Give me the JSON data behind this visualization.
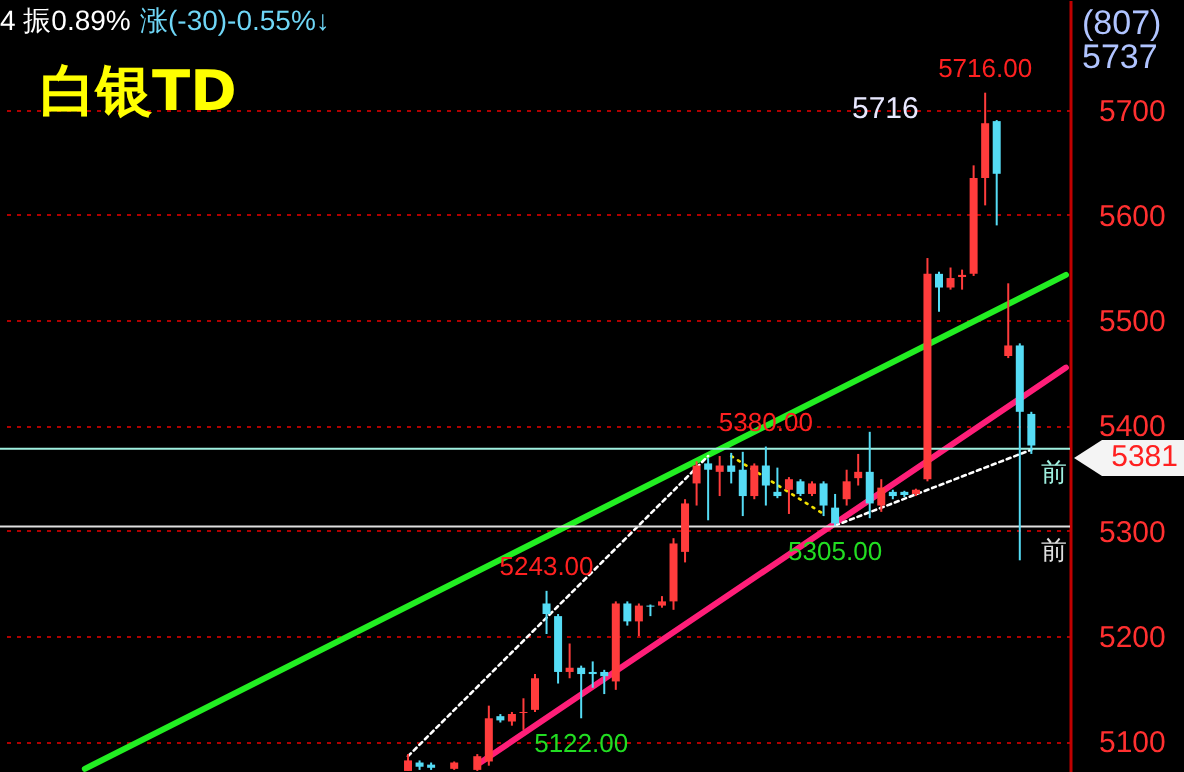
{
  "chart_data": {
    "type": "candlestick",
    "title": "白银TD",
    "annotations": [
      "4 振0.89%",
      "涨(-30)-0.55%↓",
      "(807)",
      "5737",
      "5716",
      {
        "text": "5716.00",
        "y": 5716
      },
      {
        "text": "5380.00",
        "y": 5380
      },
      {
        "text": "5243.00",
        "y": 5243
      },
      {
        "text": "5122.00",
        "y": 5122
      },
      {
        "text": "5305.00",
        "y": 5305
      },
      "5381"
    ],
    "categories": [
      null,
      null,
      null,
      null,
      null,
      null,
      null,
      null,
      null,
      null,
      null,
      null,
      null,
      null,
      null,
      null,
      null,
      null,
      null,
      null,
      null,
      null,
      null,
      null,
      null,
      null,
      null,
      null,
      null,
      null,
      null,
      null,
      null,
      null,
      null,
      null,
      null,
      null,
      null,
      null,
      null,
      null,
      null,
      null,
      null,
      null,
      null,
      null,
      null,
      null,
      null,
      null,
      null,
      null,
      null,
      null,
      null,
      null,
      null,
      null,
      null,
      null,
      null,
      null,
      null,
      null,
      null,
      null,
      null,
      null,
      null,
      null,
      null,
      null,
      null,
      null,
      null,
      null,
      null,
      null,
      null,
      null,
      null,
      null,
      null,
      null,
      null,
      null,
      null,
      null,
      null,
      null,
      null
    ],
    "ohlc": [
      null,
      null,
      null,
      null,
      null,
      null,
      null,
      null,
      null,
      null,
      null,
      null,
      null,
      null,
      null,
      null,
      null,
      null,
      null,
      null,
      null,
      null,
      null,
      null,
      null,
      null,
      null,
      null,
      null,
      null,
      null,
      null,
      null,
      null,
      null,
      [
        5072,
        5088,
        5072,
        5082
      ],
      [
        5080,
        5082,
        5073,
        5076
      ],
      [
        5078,
        5080,
        5073,
        5075
      ],
      null,
      [
        5074,
        5081,
        5073,
        5080
      ],
      null,
      [
        5073,
        5088,
        5072,
        5086
      ],
      [
        5081,
        5134,
        5077,
        5122
      ],
      [
        5124,
        5126,
        5118,
        5120
      ],
      [
        5119,
        5128,
        5115,
        5126
      ],
      [
        5127,
        5141,
        5111,
        5128
      ],
      [
        5130,
        5164,
        5128,
        5160
      ],
      [
        5231,
        5243,
        5202,
        5221
      ],
      [
        5219,
        5221,
        5155,
        5166
      ],
      [
        5166,
        5193,
        5160,
        5170
      ],
      [
        5170,
        5172,
        5122,
        5164
      ],
      [
        5166,
        5176,
        5151,
        5164
      ],
      [
        5166,
        5168,
        5145,
        5162
      ],
      [
        5157,
        5233,
        5149,
        5231
      ],
      [
        5231,
        5233,
        5210,
        5214
      ],
      [
        5214,
        5231,
        5200,
        5229
      ],
      [
        5229,
        5230,
        5219,
        5228
      ],
      [
        5229,
        5238,
        5227,
        5233
      ],
      [
        5233,
        5293,
        5225,
        5288
      ],
      [
        5280,
        5330,
        5270,
        5326
      ],
      [
        5345,
        5366,
        5324,
        5362
      ],
      [
        5364,
        5369,
        5310,
        5358
      ],
      [
        5356,
        5371,
        5333,
        5362
      ],
      [
        5362,
        5374,
        5345,
        5356
      ],
      [
        5358,
        5375,
        5314,
        5333
      ],
      [
        5333,
        5364,
        5330,
        5362
      ],
      [
        5362,
        5380,
        5324,
        5343
      ],
      [
        5337,
        5360,
        5331,
        5333
      ],
      [
        5339,
        5351,
        5316,
        5349
      ],
      [
        5347,
        5349,
        5333,
        5335
      ],
      [
        5335,
        5347,
        5333,
        5345
      ],
      [
        5345,
        5347,
        5314,
        5324
      ],
      [
        5322,
        5335,
        5305,
        5307
      ],
      [
        5330,
        5358,
        5324,
        5347
      ],
      [
        5350,
        5373,
        5343,
        5356
      ],
      [
        5356,
        5394,
        5312,
        5326
      ],
      [
        5324,
        5349,
        5318,
        5341
      ],
      [
        5337,
        5339,
        5330,
        5333
      ],
      [
        5337,
        5338,
        5332,
        5334
      ],
      [
        5335,
        5340,
        5333,
        5339
      ],
      [
        5349,
        5559,
        5347,
        5544
      ],
      [
        5544,
        5546,
        5508,
        5531
      ],
      [
        5531,
        5550,
        5529,
        5540
      ],
      [
        5541,
        5548,
        5529,
        5543
      ],
      [
        5544,
        5647,
        5542,
        5635
      ],
      [
        5635,
        5716,
        5609,
        5687
      ],
      [
        5689,
        5690,
        5590,
        5639
      ],
      [
        5466,
        5535,
        5464,
        5476
      ],
      [
        5476,
        5478,
        5272,
        5413
      ],
      [
        5411,
        5413,
        5373,
        5381
      ],
      null,
      null,
      null
    ],
    "series": [
      {
        "type": "line",
        "color": "#22ee22",
        "line_style": "solid",
        "values": [
          null,
          null,
          null,
          null,
          null,
          null,
          null,
          5074,
          null,
          null,
          null,
          null,
          null,
          null,
          null,
          null,
          null,
          null,
          null,
          null,
          null,
          null,
          null,
          null,
          null,
          null,
          null,
          null,
          null,
          null,
          null,
          null,
          null,
          null,
          null,
          null,
          null,
          null,
          null,
          null,
          null,
          null,
          null,
          null,
          null,
          null,
          null,
          null,
          null,
          null,
          null,
          null,
          null,
          null,
          null,
          null,
          null,
          null,
          null,
          null,
          null,
          null,
          null,
          null,
          null,
          null,
          null,
          null,
          null,
          null,
          null,
          null,
          null,
          null,
          null,
          null,
          null,
          null,
          null,
          null,
          null,
          null,
          null,
          null,
          null,
          null,
          null,
          null,
          null,
          null,
          null,
          null,
          5543
        ]
      },
      {
        "type": "line",
        "color": "#ff1e78",
        "line_style": "solid",
        "values": [
          null,
          null,
          null,
          null,
          null,
          null,
          null,
          null,
          null,
          null,
          null,
          null,
          null,
          null,
          null,
          null,
          null,
          null,
          null,
          null,
          null,
          null,
          null,
          null,
          null,
          null,
          null,
          null,
          null,
          null,
          null,
          null,
          null,
          null,
          null,
          null,
          null,
          null,
          null,
          null,
          null,
          5078,
          null,
          null,
          null,
          null,
          null,
          null,
          null,
          null,
          null,
          null,
          null,
          null,
          null,
          null,
          null,
          null,
          null,
          null,
          null,
          null,
          null,
          null,
          null,
          null,
          null,
          null,
          null,
          null,
          null,
          null,
          null,
          null,
          null,
          null,
          null,
          null,
          null,
          null,
          null,
          null,
          null,
          null,
          null,
          null,
          null,
          null,
          null,
          null,
          null,
          null,
          5455
        ]
      },
      {
        "type": "line",
        "color": "#ffffff",
        "line_style": "dashed",
        "values": [
          null,
          null,
          null,
          null,
          null,
          null,
          null,
          null,
          null,
          null,
          null,
          null,
          null,
          null,
          null,
          null,
          null,
          null,
          null,
          null,
          null,
          null,
          null,
          null,
          null,
          null,
          null,
          null,
          null,
          null,
          null,
          null,
          null,
          null,
          null,
          5086,
          null,
          null,
          null,
          null,
          null,
          null,
          null,
          null,
          null,
          null,
          null,
          null,
          null,
          null,
          null,
          null,
          null,
          null,
          null,
          null,
          null,
          null,
          null,
          null,
          null,
          5371,
          null,
          null,
          null,
          null,
          null,
          null,
          null,
          null,
          null,
          null,
          null,
          null,
          null,
          null,
          null,
          null,
          null,
          null,
          null,
          null,
          null,
          null,
          null,
          null,
          null,
          null,
          null,
          null,
          null,
          null,
          null
        ]
      },
      {
        "type": "line",
        "color": "#ffffff",
        "line_style": "dashed",
        "values": [
          null,
          null,
          null,
          null,
          null,
          null,
          null,
          null,
          null,
          null,
          null,
          null,
          null,
          null,
          null,
          null,
          null,
          null,
          null,
          null,
          null,
          null,
          null,
          null,
          null,
          null,
          null,
          null,
          null,
          null,
          null,
          null,
          null,
          null,
          null,
          null,
          null,
          null,
          null,
          null,
          null,
          null,
          null,
          null,
          null,
          null,
          null,
          null,
          null,
          null,
          null,
          null,
          null,
          null,
          null,
          null,
          null,
          null,
          null,
          null,
          null,
          null,
          null,
          null,
          null,
          null,
          null,
          null,
          null,
          null,
          null,
          null,
          5305,
          null,
          null,
          null,
          null,
          null,
          null,
          null,
          null,
          null,
          null,
          null,
          null,
          null,
          null,
          null,
          null,
          5377,
          null,
          null,
          null
        ]
      },
      {
        "type": "line",
        "color": "#f0e000",
        "line_style": "dotted",
        "values": [
          null,
          null,
          null,
          null,
          null,
          null,
          null,
          null,
          null,
          null,
          null,
          null,
          null,
          null,
          null,
          null,
          null,
          null,
          null,
          null,
          null,
          null,
          null,
          null,
          null,
          null,
          null,
          null,
          null,
          null,
          null,
          null,
          null,
          null,
          null,
          null,
          null,
          null,
          null,
          null,
          null,
          null,
          null,
          null,
          null,
          null,
          null,
          null,
          null,
          null,
          null,
          null,
          null,
          null,
          null,
          null,
          null,
          null,
          null,
          null,
          null,
          null,
          null,
          5371,
          null,
          null,
          null,
          null,
          null,
          null,
          null,
          5316,
          null,
          null,
          null,
          null,
          null,
          null,
          null,
          null,
          null,
          null,
          null,
          null,
          null,
          null,
          null,
          null,
          null,
          null,
          null,
          null,
          null
        ]
      }
    ],
    "ref_lines": [
      {
        "axis": "y",
        "value": 5378,
        "label": "前",
        "color": "#a0f0e0"
      },
      {
        "axis": "y",
        "value": 5304,
        "label": "前",
        "color": "#e0e0e0"
      }
    ],
    "ylim": [
      5071,
      5804
    ],
    "yticks": [
      5100,
      5200,
      5300,
      5400,
      5500,
      5600,
      5700
    ],
    "grid": "y",
    "tick_labels": "y"
  }
}
